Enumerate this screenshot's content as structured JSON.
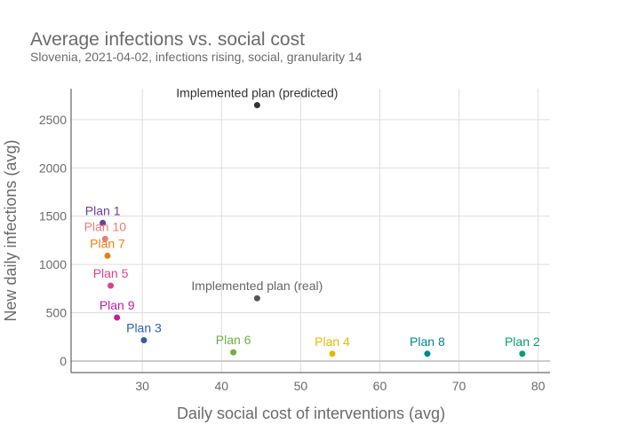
{
  "chart_data": {
    "type": "scatter",
    "title": "Average infections vs. social cost",
    "subtitle": "Slovenia, 2021-04-02, infections rising, social, granularity 14",
    "xlabel": "Daily social cost of interventions (avg)",
    "ylabel": "New daily infections (avg)",
    "xlim": [
      21,
      81.5
    ],
    "ylim": [
      -120,
      2820
    ],
    "x_ticks": [
      30,
      40,
      50,
      60,
      70,
      80
    ],
    "y_ticks": [
      0,
      500,
      1000,
      1500,
      2000,
      2500
    ],
    "grid": true,
    "colors": {
      "title": "#6b6b6b",
      "subtitle": "#6b6b6b",
      "axis_text": "#6b6b6b",
      "grid": "#dddddd",
      "axis_line": "#444444"
    },
    "points": [
      {
        "label": "Implemented plan (predicted)",
        "x": 44.5,
        "y": 2650,
        "color": "#333333",
        "label_color": "#333333"
      },
      {
        "label": "Implemented plan (real)",
        "x": 44.5,
        "y": 650,
        "color": "#555555",
        "label_color": "#666666"
      },
      {
        "label": "Plan 1",
        "x": 25.0,
        "y": 1430,
        "color": "#6b3e98",
        "label_color": "#6b3e98"
      },
      {
        "label": "Plan 10",
        "x": 25.3,
        "y": 1265,
        "color": "#f07a78",
        "label_color": "#f07a78"
      },
      {
        "label": "Plan 7",
        "x": 25.6,
        "y": 1090,
        "color": "#e8800f",
        "label_color": "#e8800f"
      },
      {
        "label": "Plan 5",
        "x": 26.0,
        "y": 780,
        "color": "#e0408a",
        "label_color": "#e0408a"
      },
      {
        "label": "Plan 9",
        "x": 26.8,
        "y": 450,
        "color": "#c41c9e",
        "label_color": "#c41c9e"
      },
      {
        "label": "Plan 3",
        "x": 30.2,
        "y": 215,
        "color": "#2f5ea8",
        "label_color": "#2f5ea8"
      },
      {
        "label": "Plan 6",
        "x": 41.5,
        "y": 90,
        "color": "#72ad43",
        "label_color": "#72ad43"
      },
      {
        "label": "Plan 4",
        "x": 54.0,
        "y": 75,
        "color": "#e6b800",
        "label_color": "#e6b800"
      },
      {
        "label": "Plan 8",
        "x": 66.0,
        "y": 75,
        "color": "#00878f",
        "label_color": "#00878f"
      },
      {
        "label": "Plan 2",
        "x": 78.0,
        "y": 75,
        "color": "#0b9e6e",
        "label_color": "#0b9e6e"
      }
    ]
  }
}
